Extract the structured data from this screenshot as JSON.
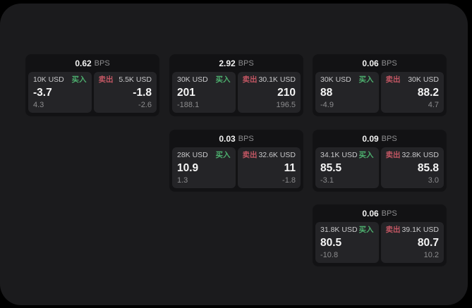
{
  "colors": {
    "buy": "#4daf6e",
    "sell": "#c25663",
    "panel_bg": "#1b1b1d",
    "card_bg": "#121214",
    "tile_bg": "#242427"
  },
  "labels": {
    "bps_unit": "BPS",
    "buy": "买入",
    "sell": "卖出"
  },
  "cards": [
    {
      "bps": "0.62",
      "buy": {
        "amount": "10K USD",
        "price": "-3.7",
        "delta": "4.3"
      },
      "sell": {
        "amount": "5.5K USD",
        "price": "-1.8",
        "delta": "-2.6"
      }
    },
    {
      "bps": "2.92",
      "buy": {
        "amount": "30K USD",
        "price": "201",
        "delta": "-188.1"
      },
      "sell": {
        "amount": "30.1K USD",
        "price": "210",
        "delta": "196.5"
      }
    },
    {
      "bps": "0.06",
      "buy": {
        "amount": "30K USD",
        "price": "88",
        "delta": "-4.9"
      },
      "sell": {
        "amount": "30K USD",
        "price": "88.2",
        "delta": "4.7"
      }
    },
    {
      "bps": "0.03",
      "buy": {
        "amount": "28K USD",
        "price": "10.9",
        "delta": "1.3"
      },
      "sell": {
        "amount": "32.6K USD",
        "price": "11",
        "delta": "-1.8"
      }
    },
    {
      "bps": "0.09",
      "buy": {
        "amount": "34.1K USD",
        "price": "85.5",
        "delta": "-3.1"
      },
      "sell": {
        "amount": "32.8K USD",
        "price": "85.8",
        "delta": "3.0"
      }
    },
    {
      "bps": "0.06",
      "buy": {
        "amount": "31.8K USD",
        "price": "80.5",
        "delta": "-10.8"
      },
      "sell": {
        "amount": "39.1K USD",
        "price": "80.7",
        "delta": "10.2"
      }
    }
  ]
}
